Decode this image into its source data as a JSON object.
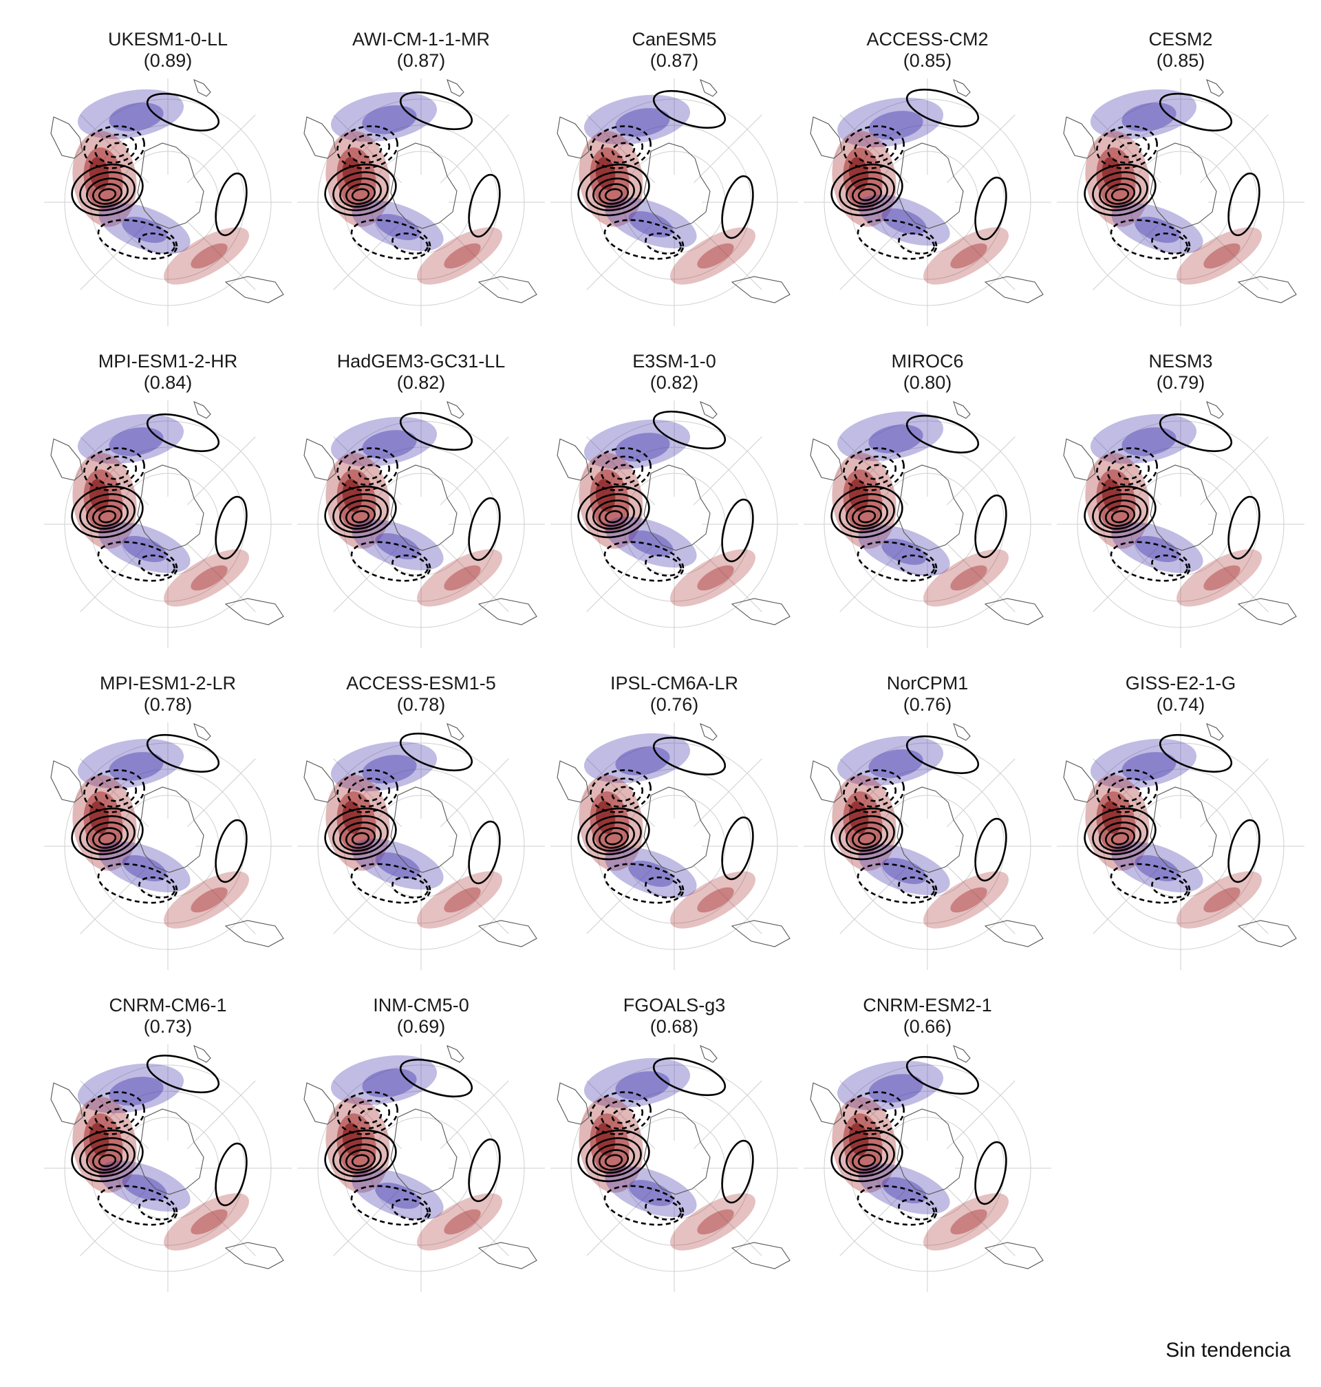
{
  "footer_label": "Sin tendencia",
  "colors": {
    "positive_fill": "#a83232",
    "negative_fill": "#4a3fb0",
    "contour": "#000000",
    "grid": "#cfcfcf",
    "coast": "#555555"
  },
  "panels": [
    {
      "model": "UKESM1-0-LL",
      "score": "(0.89)"
    },
    {
      "model": "AWI-CM-1-1-MR",
      "score": "(0.87)"
    },
    {
      "model": "CanESM5",
      "score": "(0.87)"
    },
    {
      "model": "ACCESS-CM2",
      "score": "(0.85)"
    },
    {
      "model": "CESM2",
      "score": "(0.85)"
    },
    {
      "model": "MPI-ESM1-2-HR",
      "score": "(0.84)"
    },
    {
      "model": "HadGEM3-GC31-LL",
      "score": "(0.82)"
    },
    {
      "model": "E3SM-1-0",
      "score": "(0.82)"
    },
    {
      "model": "MIROC6",
      "score": "(0.80)"
    },
    {
      "model": "NESM3",
      "score": "(0.79)"
    },
    {
      "model": "MPI-ESM1-2-LR",
      "score": "(0.78)"
    },
    {
      "model": "ACCESS-ESM1-5",
      "score": "(0.78)"
    },
    {
      "model": "IPSL-CM6A-LR",
      "score": "(0.76)"
    },
    {
      "model": "NorCPM1",
      "score": "(0.76)"
    },
    {
      "model": "GISS-E2-1-G",
      "score": "(0.74)"
    },
    {
      "model": "CNRM-CM6-1",
      "score": "(0.73)"
    },
    {
      "model": "INM-CM5-0",
      "score": "(0.69)"
    },
    {
      "model": "FGOALS-g3",
      "score": "(0.68)"
    },
    {
      "model": "CNRM-ESM2-1",
      "score": "(0.66)"
    }
  ]
}
